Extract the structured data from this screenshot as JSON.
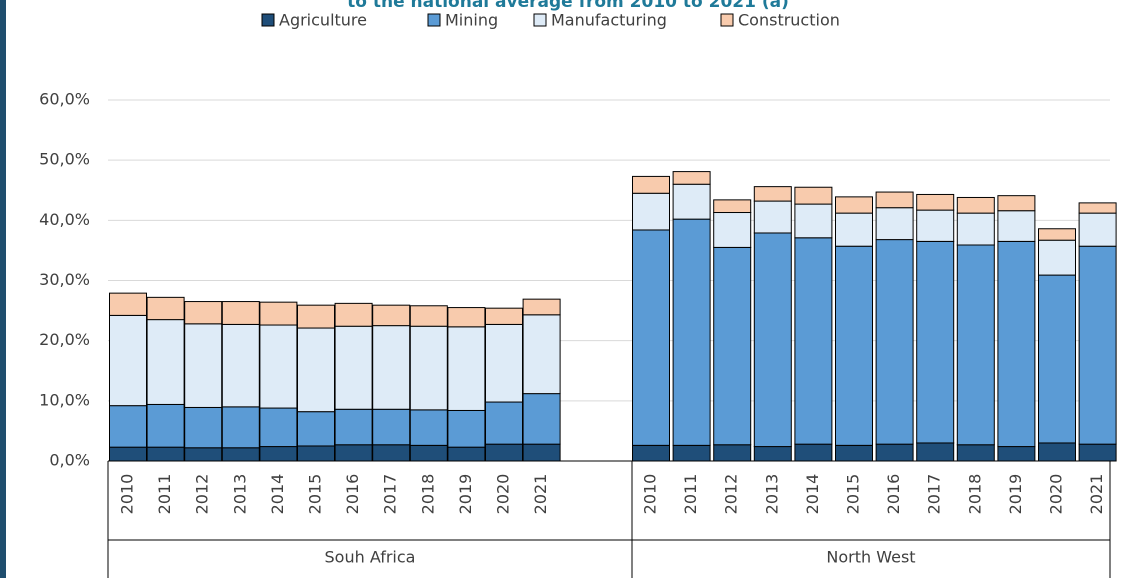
{
  "chart_data": {
    "type": "stacked-bar",
    "title": "to the national average from 2010 to 2021 (a)",
    "series": [
      {
        "name": "Agriculture",
        "color": "#1f4e79"
      },
      {
        "name": "Mining",
        "color": "#5b9bd5"
      },
      {
        "name": "Manufacturing",
        "color": "#deebf7"
      },
      {
        "name": "Construction",
        "color": "#f8cbad"
      }
    ],
    "ylim": [
      0,
      60
    ],
    "yticks": [
      {
        "value": 0,
        "label": "0,0%"
      },
      {
        "value": 10,
        "label": "10,0%"
      },
      {
        "value": 20,
        "label": "20,0%"
      },
      {
        "value": 30,
        "label": "30,0%"
      },
      {
        "value": 40,
        "label": "40,0%"
      },
      {
        "value": 50,
        "label": "50,0%"
      },
      {
        "value": 60,
        "label": "60,0%"
      }
    ],
    "grid": true,
    "legend": "top",
    "groups": [
      {
        "name": "Souh Africa",
        "categories": [
          "2010",
          "2011",
          "2012",
          "2013",
          "2014",
          "2015",
          "2016",
          "2017",
          "2018",
          "2019",
          "2020",
          "2021"
        ],
        "series": [
          {
            "values": [
              2.3,
              2.3,
              2.2,
              2.2,
              2.4,
              2.5,
              2.7,
              2.7,
              2.6,
              2.3,
              2.8,
              2.8
            ]
          },
          {
            "values": [
              6.9,
              7.1,
              6.7,
              6.8,
              6.4,
              5.7,
              5.9,
              5.9,
              5.9,
              6.1,
              7.0,
              8.4
            ]
          },
          {
            "values": [
              15.0,
              14.1,
              13.9,
              13.7,
              13.8,
              13.9,
              13.8,
              13.9,
              13.9,
              13.9,
              12.9,
              13.1
            ]
          },
          {
            "values": [
              3.7,
              3.7,
              3.7,
              3.8,
              3.8,
              3.8,
              3.8,
              3.4,
              3.4,
              3.2,
              2.7,
              2.6
            ]
          }
        ]
      },
      {
        "name": "North West",
        "categories": [
          "2010",
          "2011",
          "2012",
          "2013",
          "2014",
          "2015",
          "2016",
          "2017",
          "2018",
          "2019",
          "2020",
          "2021"
        ],
        "series": [
          {
            "values": [
              2.6,
              2.6,
              2.7,
              2.4,
              2.8,
              2.6,
              2.8,
              3.0,
              2.7,
              2.4,
              3.0,
              2.8
            ]
          },
          {
            "values": [
              35.8,
              37.6,
              32.8,
              35.5,
              34.3,
              33.1,
              34.0,
              33.5,
              33.2,
              34.1,
              27.9,
              32.9
            ]
          },
          {
            "values": [
              6.1,
              5.8,
              5.8,
              5.3,
              5.6,
              5.5,
              5.3,
              5.2,
              5.3,
              5.1,
              5.8,
              5.5
            ]
          },
          {
            "values": [
              2.8,
              2.1,
              2.1,
              2.4,
              2.8,
              2.7,
              2.6,
              2.6,
              2.6,
              2.5,
              1.9,
              1.7
            ]
          }
        ]
      }
    ]
  }
}
